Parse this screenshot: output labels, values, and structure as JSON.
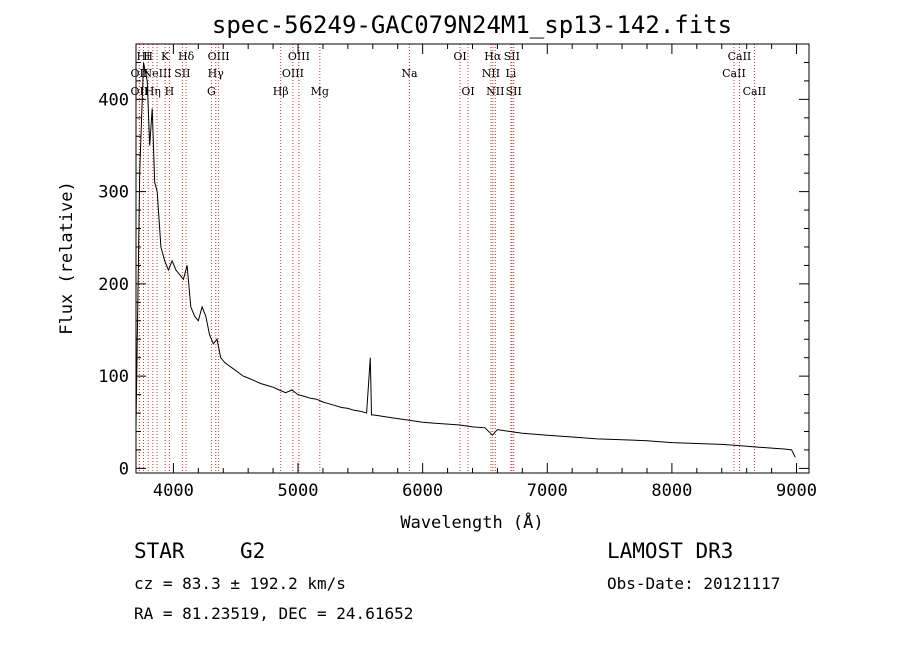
{
  "chart_data": {
    "type": "line",
    "title": "spec-56249-GAC079N24M1_sp13-142.fits",
    "xlabel": "Wavelength (Å)",
    "ylabel": "Flux (relative)",
    "xlim": [
      3700,
      9100
    ],
    "ylim": [
      -5,
      460
    ],
    "xticks": [
      4000,
      5000,
      6000,
      7000,
      8000,
      9000
    ],
    "yticks": [
      0,
      100,
      200,
      300,
      400
    ],
    "grid": false,
    "series": [
      {
        "name": "spectrum",
        "x": [
          3700,
          3730,
          3760,
          3790,
          3810,
          3830,
          3850,
          3870,
          3900,
          3930,
          3960,
          3990,
          4020,
          4050,
          4080,
          4110,
          4140,
          4170,
          4200,
          4230,
          4260,
          4290,
          4320,
          4350,
          4380,
          4410,
          4440,
          4480,
          4520,
          4560,
          4600,
          4650,
          4700,
          4750,
          4800,
          4850,
          4900,
          4950,
          5000,
          5050,
          5100,
          5150,
          5200,
          5250,
          5300,
          5350,
          5400,
          5450,
          5500,
          5550,
          5580,
          5590,
          5600,
          5650,
          5700,
          5800,
          5900,
          6000,
          6100,
          6200,
          6300,
          6400,
          6500,
          6560,
          6600,
          6700,
          6800,
          6900,
          7000,
          7200,
          7400,
          7600,
          7800,
          8000,
          8200,
          8400,
          8500,
          8600,
          8700,
          8800,
          8900,
          8960,
          8990
        ],
        "y": [
          45,
          320,
          440,
          420,
          350,
          390,
          310,
          300,
          240,
          225,
          215,
          225,
          215,
          210,
          205,
          220,
          175,
          165,
          160,
          175,
          165,
          145,
          135,
          140,
          120,
          115,
          112,
          108,
          104,
          100,
          98,
          95,
          92,
          90,
          88,
          85,
          82,
          85,
          80,
          78,
          76,
          75,
          72,
          70,
          68,
          66,
          65,
          63,
          62,
          60,
          120,
          58,
          58,
          57,
          56,
          54,
          52,
          50,
          49,
          48,
          47,
          45,
          44,
          36,
          42,
          40,
          38,
          37,
          36,
          34,
          32,
          31,
          30,
          28,
          27,
          26,
          25,
          24,
          23,
          22,
          21,
          20,
          12
        ]
      }
    ],
    "line_markers": [
      {
        "label": "OII",
        "wavelength": 3727,
        "row": 3
      },
      {
        "label": "HI",
        "wavelength": 3760,
        "row": 1
      },
      {
        "label": "OII",
        "wavelength": 3727,
        "row": 2
      },
      {
        "label": "H",
        "wavelength": 3798,
        "row": 1
      },
      {
        "label": "Hη",
        "wavelength": 3835,
        "row": 3
      },
      {
        "label": "NeIII",
        "wavelength": 3869,
        "row": 2
      },
      {
        "label": "K",
        "wavelength": 3934,
        "row": 1
      },
      {
        "label": "H",
        "wavelength": 3968,
        "row": 3
      },
      {
        "label": "SII",
        "wavelength": 4072,
        "row": 2
      },
      {
        "label": "Hδ",
        "wavelength": 4102,
        "row": 1
      },
      {
        "label": "OIII",
        "wavelength": 4363,
        "row": 1
      },
      {
        "label": "Hγ",
        "wavelength": 4340,
        "row": 2
      },
      {
        "label": "G",
        "wavelength": 4305,
        "row": 3
      },
      {
        "label": "Hβ",
        "wavelength": 4861,
        "row": 3
      },
      {
        "label": "OIII",
        "wavelength": 4959,
        "row": 2
      },
      {
        "label": "OIII",
        "wavelength": 5007,
        "row": 1
      },
      {
        "label": "Mg",
        "wavelength": 5175,
        "row": 3
      },
      {
        "label": "Na",
        "wavelength": 5894,
        "row": 2
      },
      {
        "label": "OI",
        "wavelength": 6300,
        "row": 1
      },
      {
        "label": "OI",
        "wavelength": 6364,
        "row": 3
      },
      {
        "label": "Hα",
        "wavelength": 6563,
        "row": 1
      },
      {
        "label": "NII",
        "wavelength": 6548,
        "row": 2
      },
      {
        "label": "NII",
        "wavelength": 6583,
        "row": 3
      },
      {
        "label": "SII",
        "wavelength": 6716,
        "row": 1
      },
      {
        "label": "Li",
        "wavelength": 6708,
        "row": 2
      },
      {
        "label": "SII",
        "wavelength": 6731,
        "row": 3
      },
      {
        "label": "CaII",
        "wavelength": 8498,
        "row": 2
      },
      {
        "label": "CaII",
        "wavelength": 8542,
        "row": 1
      },
      {
        "label": "CaII",
        "wavelength": 8662,
        "row": 3
      }
    ]
  },
  "info": {
    "class": "STAR",
    "subclass": "G2",
    "cz": "cz = 83.3 ± 192.2 km/s",
    "coords": "RA =  81.23519, DEC =  24.61652",
    "survey": "LAMOST DR3",
    "obs_date": "Obs-Date: 20121117"
  },
  "colors": {
    "axis": "#000000",
    "spectrum": "#000000",
    "marker": "#c0392b"
  }
}
